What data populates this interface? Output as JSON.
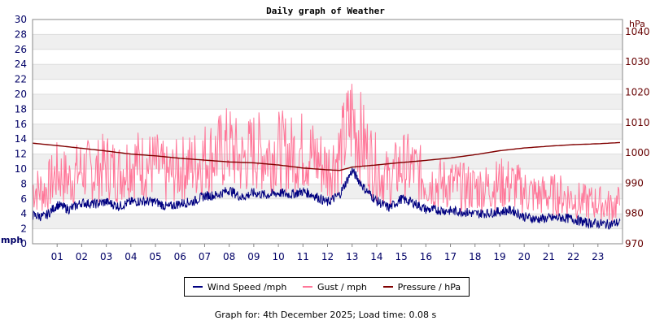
{
  "chart_data": {
    "type": "line",
    "title": "Daily graph of Weather",
    "left_axis": {
      "unit": "mph",
      "ylim": [
        0,
        30
      ],
      "ticks": [
        "0",
        "2",
        "4",
        "6",
        "8",
        "10",
        "12",
        "14",
        "16",
        "18",
        "20",
        "22",
        "24",
        "26",
        "28",
        "30"
      ]
    },
    "right_axis": {
      "unit": "hPa",
      "ylim": [
        970,
        1044
      ],
      "ticks": [
        "970",
        "980",
        "990",
        "1000",
        "1010",
        "1020",
        "1030",
        "1040"
      ]
    },
    "x_ticks": [
      "01",
      "02",
      "03",
      "04",
      "05",
      "06",
      "07",
      "08",
      "09",
      "10",
      "11",
      "12",
      "13",
      "14",
      "15",
      "16",
      "17",
      "18",
      "19",
      "20",
      "21",
      "22",
      "23"
    ],
    "x_range_hours": [
      0,
      24
    ],
    "grid": true,
    "legend_position": "bottom",
    "series": [
      {
        "name": "Wind Speed /mph",
        "axis": "left",
        "color": "#000080",
        "x": [
          0,
          0.5,
          1,
          1.5,
          2,
          2.5,
          3,
          3.5,
          4,
          4.5,
          5,
          5.5,
          6,
          6.5,
          7,
          7.5,
          8,
          8.5,
          9,
          9.5,
          10,
          10.5,
          11,
          11.5,
          12,
          12.5,
          13,
          13.5,
          14,
          14.5,
          15,
          15.5,
          16,
          16.5,
          17,
          17.5,
          18,
          18.5,
          19,
          19.5,
          20,
          20.5,
          21,
          21.5,
          22,
          22.5,
          23,
          23.5,
          23.9
        ],
        "y": [
          3.8,
          3.6,
          5.2,
          4.6,
          5.5,
          5.3,
          5.6,
          5.0,
          5.6,
          5.7,
          5.6,
          4.9,
          5.4,
          5.6,
          6.4,
          6.5,
          7.2,
          6.2,
          6.8,
          6.5,
          6.8,
          6.6,
          7.0,
          6.4,
          5.5,
          6.6,
          9.8,
          7.4,
          5.7,
          4.8,
          6.0,
          5.5,
          4.6,
          4.5,
          4.4,
          4.3,
          4.0,
          4.1,
          4.3,
          4.5,
          3.6,
          3.3,
          3.4,
          3.5,
          3.3,
          2.8,
          2.7,
          2.6,
          2.9
        ]
      },
      {
        "name": "Gust / mph",
        "axis": "left",
        "color": "#ff7799",
        "x": [
          0,
          0.5,
          1,
          1.5,
          2,
          2.5,
          3,
          3.5,
          4,
          4.5,
          5,
          5.5,
          6,
          6.5,
          7,
          7.5,
          8,
          8.5,
          9,
          9.5,
          10,
          10.5,
          11,
          11.5,
          12,
          12.5,
          13,
          13.5,
          14,
          14.5,
          15,
          15.5,
          16,
          16.5,
          17,
          17.5,
          18,
          18.5,
          19,
          19.5,
          20,
          20.5,
          21,
          21.5,
          22,
          22.5,
          23,
          23.5,
          23.9
        ],
        "y": [
          7.5,
          7.0,
          9.5,
          8.5,
          10,
          9.5,
          10.5,
          9.5,
          11,
          10.5,
          10.5,
          9.0,
          10,
          10.5,
          11.5,
          12,
          13,
          11,
          12.5,
          12,
          12.5,
          12,
          12.5,
          11.5,
          10,
          12,
          17,
          13,
          10,
          8.5,
          10.5,
          10,
          8.5,
          8,
          8,
          7.5,
          7.5,
          7.5,
          8,
          8,
          7,
          6.5,
          6.5,
          6.5,
          6,
          5.5,
          5.5,
          5,
          5.5
        ]
      },
      {
        "name": "Pressure / hPa",
        "axis": "right",
        "color": "#800000",
        "x": [
          0,
          1,
          2,
          3,
          4,
          5,
          6,
          7,
          8,
          9,
          10,
          11,
          12,
          12.5,
          13,
          14,
          15,
          16,
          17,
          18,
          19,
          20,
          21,
          22,
          23,
          23.9
        ],
        "y": [
          1003.2,
          1002.4,
          1001.5,
          1000.6,
          999.6,
          999.0,
          998.2,
          997.6,
          997.0,
          996.7,
          996.0,
          995.0,
          994.4,
          994.2,
          995.3,
          996.0,
          996.8,
          997.5,
          998.3,
          999.4,
          1000.7,
          1001.6,
          1002.2,
          1002.7,
          1003.0,
          1003.4
        ]
      }
    ]
  },
  "legend": {
    "wind": "Wind Speed /mph",
    "gust": "Gust / mph",
    "pressure": "Pressure / hPa"
  },
  "footer": "Graph for: 4th December 2025; Load time: 0.08 s"
}
